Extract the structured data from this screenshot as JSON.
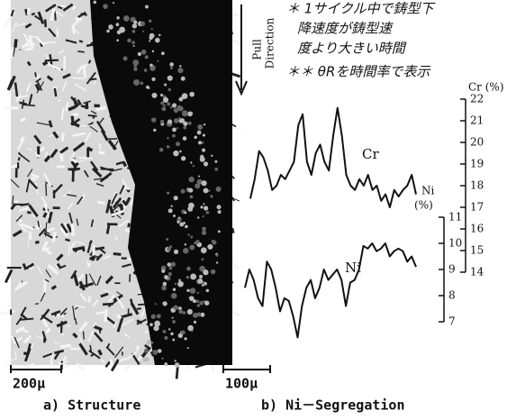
{
  "annotations": [
    "＊ 1サイクル中で鋳型下",
    "降速度が鋳型速",
    "度より大きい時間",
    "＊＊ θRを時間率で表示"
  ],
  "panel_a": {
    "scale_bar": "200μ",
    "caption": "a)  Structure"
  },
  "panel_b": {
    "scale_bar": "100μ",
    "caption": "b)  Ni－Segregation",
    "pull_direction": [
      "Pull",
      "Direction"
    ]
  },
  "chart_data": {
    "type": "line",
    "y_label": "Cr (%)",
    "y2_label": [
      "Ni",
      "(%)"
    ],
    "series": [
      {
        "name": "Cr",
        "color": "#111111",
        "values": [
          17.4,
          18.3,
          19.6,
          19.3,
          18.7,
          17.8,
          18.0,
          18.5,
          18.3,
          18.7,
          19.1,
          20.8,
          21.3,
          19.1,
          18.5,
          19.5,
          19.9,
          19.1,
          18.7,
          20.3,
          21.6,
          20.3,
          18.5,
          18.0,
          17.8,
          18.3,
          18.0,
          18.5,
          17.8,
          18.0,
          17.3,
          17.6,
          17.0,
          17.8,
          17.5,
          17.8,
          18.0,
          18.5,
          17.6
        ]
      },
      {
        "name": "Ni",
        "color": "#111111",
        "axis": "y2",
        "values": [
          8.3,
          9.0,
          8.6,
          7.9,
          7.6,
          9.3,
          9.0,
          8.3,
          7.4,
          7.9,
          7.8,
          7.2,
          6.4,
          7.6,
          8.3,
          8.6,
          7.9,
          8.3,
          9.0,
          8.6,
          8.8,
          9.0,
          8.6,
          7.6,
          8.5,
          8.6,
          9.0,
          9.9,
          9.8,
          10.0,
          9.7,
          9.8,
          10.0,
          9.5,
          9.7,
          9.8,
          9.7,
          9.3,
          9.5,
          9.1
        ]
      }
    ],
    "ylim": [
      14,
      22
    ],
    "yticks": [
      14,
      15,
      16,
      17,
      18,
      19,
      20,
      21,
      22
    ],
    "y2lim": [
      7,
      11
    ],
    "y2ticks": [
      7,
      8,
      9,
      10,
      11
    ]
  }
}
